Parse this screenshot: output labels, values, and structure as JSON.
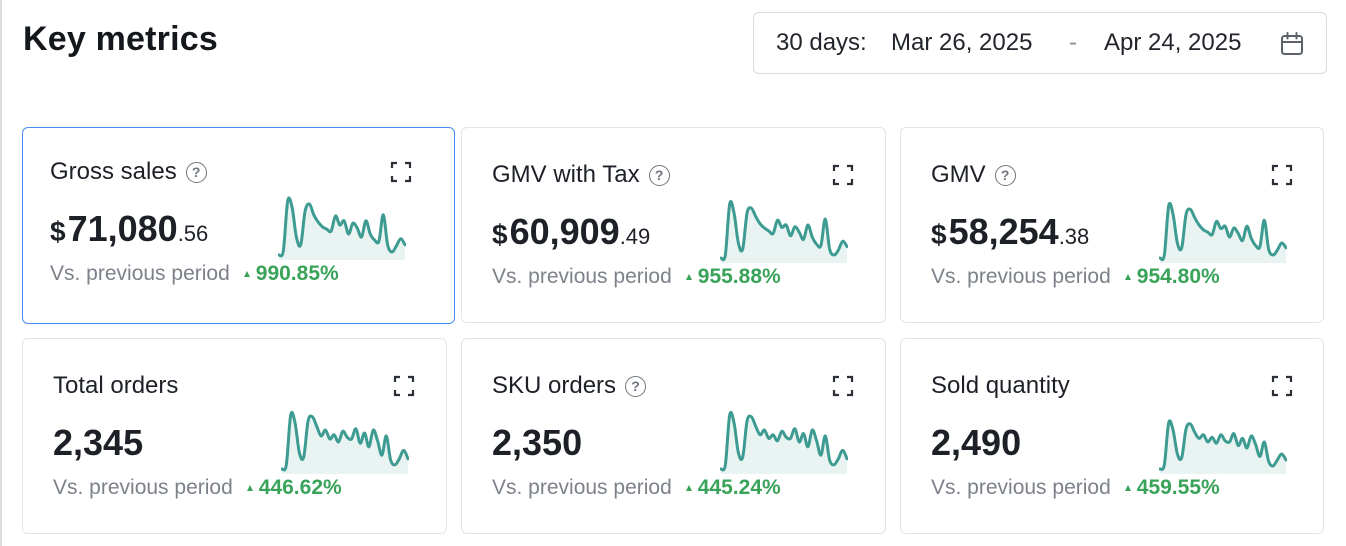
{
  "header": {
    "title": "Key metrics",
    "date_range": {
      "prefix": "30 days:",
      "start": "Mar 26, 2025",
      "separator": "-",
      "end": "Apr 24, 2025",
      "icon": "calendar-icon"
    }
  },
  "colors": {
    "selected_border": "#4a8ef4",
    "positive_change": "#3aa35a",
    "sparkline_line": "#3d9b91",
    "sparkline_fill": "#e9f4f2"
  },
  "metrics": [
    {
      "title": "Gross sales",
      "has_help": true,
      "currency": "$",
      "value_main": "71,080",
      "value_decimal": ".56",
      "compare_label": "Vs. previous period",
      "change": "990.85%",
      "direction": "up",
      "selected": true,
      "sparkline": [
        0.05,
        0.12,
        0.95,
        0.85,
        0.35,
        0.22,
        0.78,
        0.9,
        0.72,
        0.6,
        0.52,
        0.48,
        0.45,
        0.7,
        0.55,
        0.62,
        0.4,
        0.58,
        0.5,
        0.35,
        0.62,
        0.4,
        0.3,
        0.28,
        0.72,
        0.22,
        0.1,
        0.2,
        0.32,
        0.22
      ]
    },
    {
      "title": "GMV with Tax",
      "has_help": true,
      "currency": "$",
      "value_main": "60,909",
      "value_decimal": ".49",
      "compare_label": "Vs. previous period",
      "change": "955.88%",
      "direction": "up",
      "selected": false,
      "sparkline": [
        0.05,
        0.1,
        0.95,
        0.8,
        0.3,
        0.2,
        0.8,
        0.88,
        0.74,
        0.62,
        0.55,
        0.5,
        0.46,
        0.68,
        0.56,
        0.6,
        0.42,
        0.57,
        0.48,
        0.36,
        0.6,
        0.4,
        0.28,
        0.26,
        0.7,
        0.2,
        0.1,
        0.18,
        0.33,
        0.24
      ]
    },
    {
      "title": "GMV",
      "has_help": true,
      "currency": "$",
      "value_main": "58,254",
      "value_decimal": ".38",
      "compare_label": "Vs. previous period",
      "change": "954.80%",
      "direction": "up",
      "selected": false,
      "sparkline": [
        0.05,
        0.1,
        0.92,
        0.78,
        0.3,
        0.22,
        0.78,
        0.86,
        0.72,
        0.6,
        0.52,
        0.48,
        0.44,
        0.66,
        0.54,
        0.58,
        0.4,
        0.55,
        0.46,
        0.34,
        0.58,
        0.38,
        0.26,
        0.24,
        0.68,
        0.2,
        0.1,
        0.18,
        0.3,
        0.22
      ]
    },
    {
      "title": "Total orders",
      "has_help": false,
      "currency": "",
      "value_main": "2,345",
      "value_decimal": "",
      "compare_label": "Vs. previous period",
      "change": "446.62%",
      "direction": "up",
      "selected": false,
      "sparkline": [
        0.05,
        0.12,
        0.95,
        0.82,
        0.32,
        0.25,
        0.85,
        0.92,
        0.76,
        0.6,
        0.7,
        0.55,
        0.62,
        0.5,
        0.68,
        0.58,
        0.55,
        0.72,
        0.48,
        0.65,
        0.42,
        0.7,
        0.52,
        0.28,
        0.6,
        0.2,
        0.12,
        0.22,
        0.36,
        0.22
      ]
    },
    {
      "title": "SKU orders",
      "has_help": true,
      "currency": "",
      "value_main": "2,350",
      "value_decimal": "",
      "compare_label": "Vs. previous period",
      "change": "445.24%",
      "direction": "up",
      "selected": false,
      "sparkline": [
        0.05,
        0.12,
        0.95,
        0.82,
        0.32,
        0.25,
        0.85,
        0.92,
        0.76,
        0.62,
        0.7,
        0.56,
        0.62,
        0.52,
        0.68,
        0.58,
        0.56,
        0.72,
        0.5,
        0.64,
        0.42,
        0.7,
        0.52,
        0.28,
        0.6,
        0.2,
        0.12,
        0.22,
        0.36,
        0.22
      ]
    },
    {
      "title": "Sold quantity",
      "has_help": false,
      "currency": "",
      "value_main": "2,490",
      "value_decimal": "",
      "compare_label": "Vs. previous period",
      "change": "459.55%",
      "direction": "up",
      "selected": false,
      "sparkline": [
        0.05,
        0.12,
        0.82,
        0.7,
        0.3,
        0.24,
        0.72,
        0.8,
        0.66,
        0.56,
        0.62,
        0.5,
        0.58,
        0.48,
        0.62,
        0.52,
        0.5,
        0.64,
        0.44,
        0.56,
        0.4,
        0.6,
        0.46,
        0.26,
        0.5,
        0.18,
        0.1,
        0.2,
        0.3,
        0.2
      ]
    }
  ]
}
